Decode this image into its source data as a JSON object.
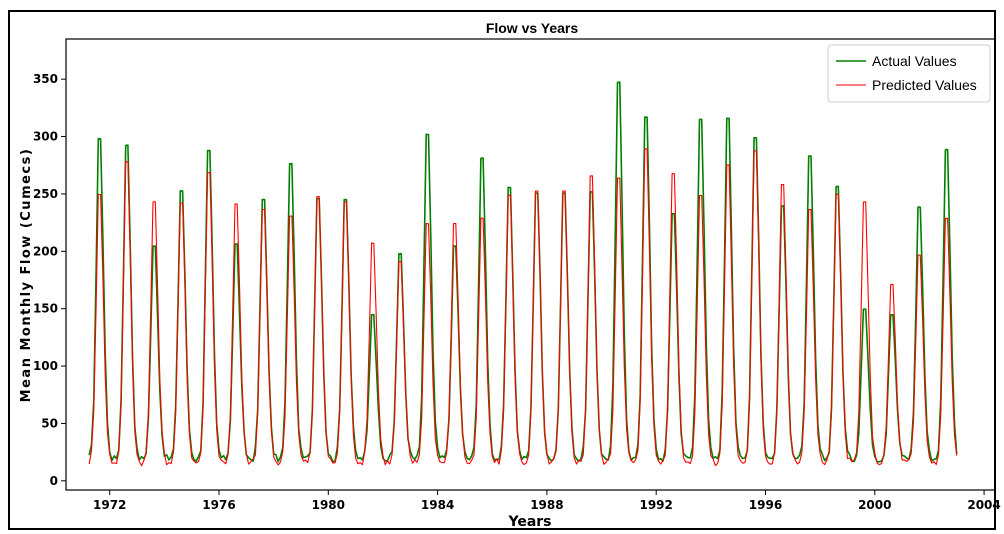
{
  "chart_data": {
    "type": "line",
    "title": "Flow vs Years",
    "xlabel": "Years",
    "ylabel": "Mean Monthly Flow (Cumecs)",
    "xlim": [
      1970.4,
      2004.4
    ],
    "ylim": [
      -8,
      385
    ],
    "x_ticks": [
      1972,
      1976,
      1980,
      1984,
      1988,
      1992,
      1996,
      2000,
      2004
    ],
    "y_ticks": [
      0,
      50,
      100,
      150,
      200,
      250,
      300,
      350
    ],
    "legend_position": "top-right",
    "x_range_data": [
      1971.25,
      2003.0
    ],
    "annual_peak_years": [
      1971.62,
      1972.62,
      1973.62,
      1974.62,
      1975.62,
      1976.62,
      1977.62,
      1978.62,
      1979.62,
      1980.62,
      1981.62,
      1982.62,
      1983.62,
      1984.62,
      1985.62,
      1986.62,
      1987.62,
      1988.62,
      1989.62,
      1990.62,
      1991.62,
      1992.62,
      1993.62,
      1994.62,
      1995.62,
      1996.62,
      1997.62,
      1998.62,
      1999.62,
      2000.62,
      2001.62,
      2002.62
    ],
    "series": [
      {
        "name": "Actual Values",
        "color": "#008000",
        "line_width": 1.6,
        "annual_peaks": [
          314,
          308,
          215,
          266,
          303,
          217,
          258,
          291,
          259,
          258,
          152,
          208,
          318,
          215,
          296,
          269,
          264,
          264,
          265,
          366,
          334,
          245,
          332,
          333,
          315,
          252,
          298,
          270,
          157,
          152,
          251,
          304
        ],
        "annual_min": 13
      },
      {
        "name": "Predicted Values",
        "color": "#ff0000",
        "line_width": 1.1,
        "annual_peaks": [
          263,
          293,
          256,
          255,
          283,
          254,
          249,
          243,
          261,
          256,
          218,
          201,
          236,
          236,
          241,
          262,
          266,
          266,
          280,
          278,
          305,
          282,
          262,
          290,
          303,
          272,
          249,
          263,
          256,
          180,
          207,
          241
        ],
        "annual_min": 10
      }
    ]
  }
}
